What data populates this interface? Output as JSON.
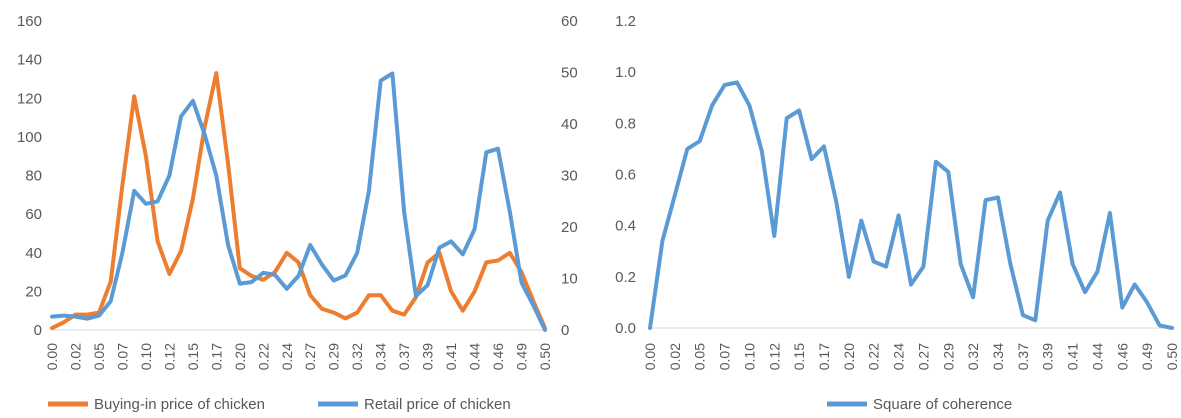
{
  "chart_data": [
    {
      "type": "line",
      "x_tick_labels": [
        "0.00",
        "0.02",
        "0.05",
        "0.07",
        "0.10",
        "0.12",
        "0.15",
        "0.17",
        "0.20",
        "0.22",
        "0.24",
        "0.27",
        "0.29",
        "0.32",
        "0.34",
        "0.37",
        "0.39",
        "0.41",
        "0.44",
        "0.46",
        "0.49",
        "0.50"
      ],
      "x_count": 43,
      "y_left": {
        "min": 0,
        "max": 160,
        "ticks": [
          "0",
          "20",
          "40",
          "60",
          "80",
          "100",
          "120",
          "140",
          "160"
        ]
      },
      "y_right": {
        "min": 0,
        "max": 60,
        "ticks": [
          "0",
          "10",
          "20",
          "30",
          "40",
          "50",
          "60"
        ]
      },
      "grid": false,
      "legend_position": "bottom",
      "series": [
        {
          "name": "Buying-in price of chicken",
          "axis": "left",
          "color": "#ED7D31",
          "values": [
            1,
            4,
            8,
            8,
            9,
            25,
            75,
            121,
            90,
            46,
            29,
            41,
            68,
            105,
            133,
            86,
            32,
            28,
            26,
            30,
            40,
            35,
            18,
            11,
            9,
            6,
            9,
            18,
            18,
            10,
            8,
            17,
            35,
            40,
            20,
            10,
            20,
            35,
            36,
            40,
            30,
            15,
            1
          ]
        },
        {
          "name": "Retail price of chicken",
          "axis": "right",
          "color": "#5B9BD5",
          "values": [
            2.6,
            2.8,
            2.6,
            2.2,
            2.8,
            5.6,
            15,
            27,
            24.5,
            25,
            30,
            41.5,
            44.5,
            38,
            30,
            16.5,
            9,
            9.3,
            11.1,
            10.7,
            8,
            10.5,
            16.5,
            12.7,
            9.6,
            10.6,
            15,
            27,
            48.4,
            49.8,
            23,
            6.6,
            8.7,
            16,
            17.2,
            14.7,
            19.6,
            34.5,
            35.2,
            23,
            9.2,
            4.8,
            0
          ]
        }
      ]
    },
    {
      "type": "line",
      "x_tick_labels": [
        "0.00",
        "0.02",
        "0.05",
        "0.07",
        "0.10",
        "0.12",
        "0.15",
        "0.17",
        "0.20",
        "0.22",
        "0.24",
        "0.27",
        "0.29",
        "0.32",
        "0.34",
        "0.37",
        "0.39",
        "0.41",
        "0.44",
        "0.46",
        "0.49",
        "0.50"
      ],
      "x_count": 43,
      "y": {
        "min": 0,
        "max": 1.2,
        "ticks": [
          "0.0",
          "0.2",
          "0.4",
          "0.6",
          "0.8",
          "1.0",
          "1.2"
        ]
      },
      "grid": false,
      "legend_position": "bottom",
      "series": [
        {
          "name": "Square of coherence",
          "color": "#5B9BD5",
          "values": [
            0,
            0.34,
            0.52,
            0.7,
            0.73,
            0.87,
            0.95,
            0.96,
            0.87,
            0.69,
            0.36,
            0.82,
            0.85,
            0.66,
            0.71,
            0.49,
            0.2,
            0.42,
            0.26,
            0.24,
            0.44,
            0.17,
            0.24,
            0.65,
            0.61,
            0.25,
            0.12,
            0.5,
            0.51,
            0.25,
            0.05,
            0.03,
            0.42,
            0.53,
            0.25,
            0.14,
            0.22,
            0.45,
            0.08,
            0.17,
            0.1,
            0.01,
            0
          ]
        }
      ]
    }
  ]
}
